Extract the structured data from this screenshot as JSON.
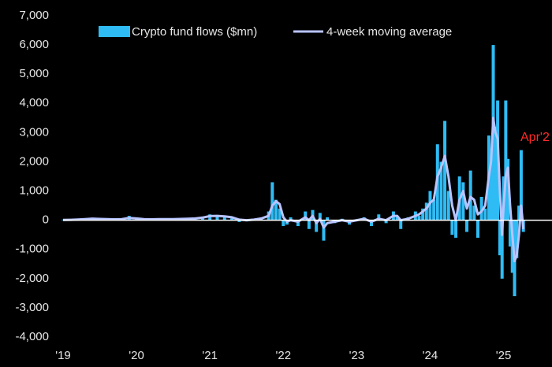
{
  "chart_data": {
    "type": "bar-line",
    "annotation": "Apr'2",
    "xlim": [
      2019,
      2025.66
    ],
    "xticks": [
      {
        "value": 2019,
        "label": "'19"
      },
      {
        "value": 2020,
        "label": "'20"
      },
      {
        "value": 2021,
        "label": "'21"
      },
      {
        "value": 2022,
        "label": "'22"
      },
      {
        "value": 2023,
        "label": "'23"
      },
      {
        "value": 2024,
        "label": "'24"
      },
      {
        "value": 2025,
        "label": "'25"
      }
    ],
    "ylim": [
      -4000,
      7000
    ],
    "yticks": [
      {
        "value": -4000,
        "label": "-4,000"
      },
      {
        "value": -3000,
        "label": "-3,000"
      },
      {
        "value": -2000,
        "label": "-2,000"
      },
      {
        "value": -1000,
        "label": "-1,000"
      },
      0,
      {
        "value": 1000,
        "label": "1,000"
      },
      {
        "value": 2000,
        "label": "2,000"
      },
      {
        "value": 3000,
        "label": "3,000"
      },
      {
        "value": 4000,
        "label": "4,000"
      },
      {
        "value": 5000,
        "label": "5,000"
      },
      {
        "value": 6000,
        "label": "6,000"
      },
      {
        "value": 7000,
        "label": "7,000"
      }
    ],
    "x": [
      2019.0,
      2019.1,
      2019.2,
      2019.3,
      2019.4,
      2019.5,
      2019.6,
      2019.7,
      2019.8,
      2019.9,
      2020.0,
      2020.1,
      2020.2,
      2020.3,
      2020.4,
      2020.5,
      2020.6,
      2020.7,
      2020.8,
      2020.9,
      2021.0,
      2021.1,
      2021.2,
      2021.3,
      2021.4,
      2021.5,
      2021.6,
      2021.7,
      2021.8,
      2021.85,
      2021.9,
      2021.95,
      2022.0,
      2022.05,
      2022.1,
      2022.2,
      2022.3,
      2022.35,
      2022.4,
      2022.45,
      2022.5,
      2022.55,
      2022.6,
      2022.7,
      2022.8,
      2022.9,
      2023.0,
      2023.1,
      2023.2,
      2023.3,
      2023.4,
      2023.5,
      2023.55,
      2023.6,
      2023.7,
      2023.8,
      2023.85,
      2023.9,
      2023.95,
      2024.0,
      2024.05,
      2024.1,
      2024.15,
      2024.2,
      2024.25,
      2024.3,
      2024.35,
      2024.4,
      2024.45,
      2024.5,
      2024.55,
      2024.6,
      2024.65,
      2024.7,
      2024.75,
      2024.8,
      2024.83,
      2024.86,
      2024.89,
      2024.92,
      2024.95,
      2024.98,
      2025.0,
      2025.03,
      2025.06,
      2025.09,
      2025.12,
      2025.15,
      2025.18,
      2025.21,
      2025.24,
      2025.27
    ],
    "series": [
      {
        "name": "Crypto fund flows ($mn)",
        "kind": "bar",
        "color": "#2fbcf5",
        "values": [
          20,
          10,
          30,
          50,
          80,
          40,
          30,
          20,
          60,
          150,
          40,
          30,
          20,
          40,
          50,
          30,
          60,
          40,
          80,
          120,
          200,
          150,
          100,
          80,
          -60,
          -40,
          50,
          90,
          300,
          1300,
          700,
          400,
          -200,
          -150,
          100,
          -200,
          300,
          -300,
          350,
          -400,
          250,
          -700,
          100,
          -100,
          50,
          -150,
          30,
          100,
          -200,
          200,
          -100,
          300,
          150,
          -300,
          100,
          300,
          150,
          400,
          600,
          1000,
          700,
          2600,
          2000,
          3400,
          1000,
          -500,
          -600,
          1500,
          1300,
          -400,
          1700,
          500,
          -600,
          800,
          400,
          2900,
          2000,
          6000,
          3200,
          4100,
          -1200,
          -2000,
          1500,
          4100,
          2100,
          -900,
          -1800,
          -2600,
          -1300,
          500,
          2400,
          -400
        ]
      },
      {
        "name": "4-week moving average",
        "kind": "line",
        "color": "#b8c4ff",
        "values": [
          10,
          15,
          25,
          40,
          55,
          45,
          35,
          30,
          40,
          80,
          60,
          40,
          30,
          35,
          40,
          40,
          45,
          50,
          60,
          90,
          140,
          150,
          130,
          100,
          20,
          0,
          20,
          60,
          150,
          500,
          650,
          550,
          100,
          -50,
          0,
          -50,
          100,
          0,
          150,
          -100,
          50,
          -250,
          -100,
          -50,
          0,
          -50,
          0,
          50,
          -50,
          50,
          0,
          150,
          150,
          0,
          50,
          150,
          200,
          300,
          400,
          600,
          700,
          1500,
          1800,
          2200,
          1500,
          500,
          0,
          700,
          1000,
          400,
          800,
          700,
          200,
          300,
          500,
          1500,
          2000,
          3500,
          3000,
          2800,
          1000,
          -500,
          500,
          1500,
          1800,
          500,
          -500,
          -1400,
          -1200,
          -500,
          500,
          -300
        ]
      }
    ]
  }
}
